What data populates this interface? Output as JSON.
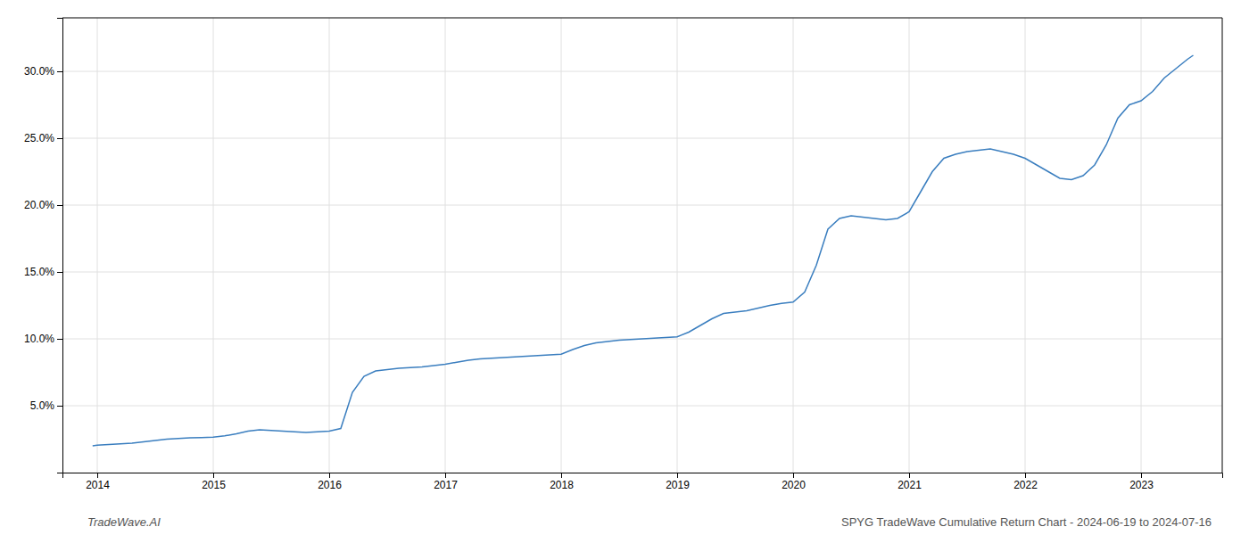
{
  "chart_data": {
    "type": "line",
    "title": "SPYG TradeWave Cumulative Return Chart - 2024-06-19 to 2024-07-16",
    "annotations": [
      "TradeWave.AI"
    ],
    "color": "#3a7ebf",
    "grid": true,
    "x": [
      2013.96,
      2014.0,
      2014.1,
      2014.2,
      2014.3,
      2014.4,
      2014.5,
      2014.6,
      2014.7,
      2014.8,
      2014.9,
      2015.0,
      2015.1,
      2015.2,
      2015.3,
      2015.4,
      2015.5,
      2015.6,
      2015.7,
      2015.8,
      2015.9,
      2016.0,
      2016.1,
      2016.2,
      2016.3,
      2016.4,
      2016.5,
      2016.6,
      2016.7,
      2016.8,
      2016.9,
      2017.0,
      2017.1,
      2017.2,
      2017.3,
      2017.4,
      2017.5,
      2017.6,
      2017.7,
      2017.8,
      2017.9,
      2018.0,
      2018.1,
      2018.2,
      2018.3,
      2018.4,
      2018.5,
      2018.6,
      2018.7,
      2018.8,
      2018.9,
      2019.0,
      2019.1,
      2019.2,
      2019.3,
      2019.4,
      2019.5,
      2019.6,
      2019.7,
      2019.8,
      2019.9,
      2020.0,
      2020.1,
      2020.2,
      2020.3,
      2020.4,
      2020.5,
      2020.6,
      2020.7,
      2020.8,
      2020.9,
      2021.0,
      2021.1,
      2021.2,
      2021.3,
      2021.4,
      2021.5,
      2021.6,
      2021.7,
      2021.8,
      2021.9,
      2022.0,
      2022.1,
      2022.2,
      2022.3,
      2022.4,
      2022.5,
      2022.6,
      2022.7,
      2022.8,
      2022.9,
      2023.0,
      2023.1,
      2023.2,
      2023.3,
      2023.4,
      2023.45
    ],
    "values": [
      2.0,
      2.05,
      2.1,
      2.15,
      2.2,
      2.3,
      2.4,
      2.5,
      2.55,
      2.6,
      2.62,
      2.65,
      2.75,
      2.9,
      3.1,
      3.2,
      3.15,
      3.1,
      3.05,
      3.0,
      3.05,
      3.1,
      3.3,
      6.0,
      7.2,
      7.6,
      7.7,
      7.8,
      7.85,
      7.9,
      8.0,
      8.1,
      8.25,
      8.4,
      8.5,
      8.55,
      8.6,
      8.65,
      8.7,
      8.75,
      8.8,
      8.85,
      9.2,
      9.5,
      9.7,
      9.8,
      9.9,
      9.95,
      10.0,
      10.05,
      10.1,
      10.15,
      10.5,
      11.0,
      11.5,
      11.9,
      12.0,
      12.1,
      12.3,
      12.5,
      12.65,
      12.75,
      13.5,
      15.5,
      18.2,
      19.0,
      19.2,
      19.1,
      19.0,
      18.9,
      19.0,
      19.5,
      21.0,
      22.5,
      23.5,
      23.8,
      24.0,
      24.1,
      24.2,
      24.0,
      23.8,
      23.5,
      23.0,
      22.5,
      22.0,
      21.9,
      22.2,
      23.0,
      24.5,
      26.5,
      27.5,
      27.8,
      28.5,
      29.5,
      30.2,
      30.9,
      31.2
    ],
    "xlim": [
      2013.7,
      2023.7
    ],
    "ylim": [
      0,
      34
    ],
    "xticks": [
      2014,
      2015,
      2016,
      2017,
      2018,
      2019,
      2020,
      2021,
      2022,
      2023
    ],
    "yticks": [
      {
        "value": 5.0,
        "label": "5.0%"
      },
      {
        "value": 10.0,
        "label": "10.0%"
      },
      {
        "value": 15.0,
        "label": "15.0%"
      },
      {
        "value": 20.0,
        "label": "20.0%"
      },
      {
        "value": 25.0,
        "label": "25.0%"
      },
      {
        "value": 30.0,
        "label": "30.0%"
      }
    ]
  }
}
